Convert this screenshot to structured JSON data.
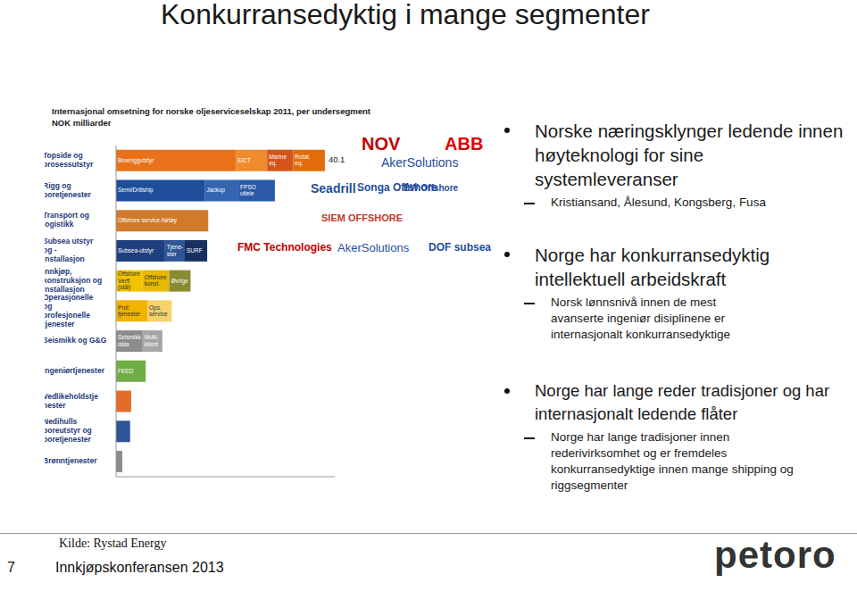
{
  "chart_data": {
    "type": "bar",
    "title": "Internasjonal omsetning for norske oljeserviceselskap 2011, per undersegment",
    "subtitle": "NOK milliarder",
    "orientation": "horizontal",
    "stacked": true,
    "tick_labels": "y",
    "categories": [
      "Topside og prosessutstyr",
      "Rigg og boretjenester",
      "Transport og logistikk",
      "Subsea utstyr og -installasjon",
      "Innkjøp, konstruksjon og installasjon",
      "Operasjonelle og profesjonelle tjenester",
      "Seismikk og G&G",
      "Ingeniørtjenester",
      "Vedlikeholdstjenester",
      "Nedihulls boreutstyr og boretjenester",
      "Brønntjenester"
    ],
    "totals": [
      40.1,
      30.5,
      17.7,
      17.5,
      14.3,
      10.7,
      8.9,
      5.7,
      2.9,
      2.7,
      1.2
    ],
    "xlim": [
      0,
      42
    ],
    "xticks": [],
    "series": [
      {
        "name": "Boreriggutstyr",
        "color": "#e8711a",
        "values": [
          23,
          null,
          null,
          null,
          null,
          null,
          null,
          null,
          null,
          null,
          null
        ]
      },
      {
        "name": "EICT",
        "color": "#f08c2e",
        "values": [
          6,
          null,
          null,
          null,
          null,
          null,
          null,
          null,
          null,
          null,
          null
        ]
      },
      {
        "name": "Marine eq.",
        "color": "#d4541a",
        "values": [
          5,
          null,
          null,
          null,
          null,
          null,
          null,
          null,
          null,
          null,
          null
        ]
      },
      {
        "name": "Rotat. eq.",
        "color": "#e36c0a",
        "values": [
          6.1,
          null,
          null,
          null,
          null,
          null,
          null,
          null,
          null,
          null,
          null
        ]
      },
      {
        "name": "Semi/Drillship",
        "color": "#1f4e9a",
        "values": [
          null,
          17,
          null,
          null,
          null,
          null,
          null,
          null,
          null,
          null,
          null
        ]
      },
      {
        "name": "Jackup",
        "color": "#3465b0",
        "values": [
          null,
          6.5,
          null,
          null,
          null,
          null,
          null,
          null,
          null,
          null,
          null
        ]
      },
      {
        "name": "FPSO utleie",
        "color": "#2a5aa8",
        "values": [
          null,
          7,
          null,
          null,
          null,
          null,
          null,
          null,
          null,
          null,
          null
        ]
      },
      {
        "name": "Offshore service-fartøy",
        "color": "#d07a2c",
        "values": [
          null,
          null,
          17.7,
          null,
          null,
          null,
          null,
          null,
          null,
          null,
          null
        ]
      },
      {
        "name": "Subsea-utstyr",
        "color": "#1f3f7f",
        "values": [
          null,
          null,
          null,
          9.4,
          null,
          null,
          null,
          null,
          null,
          null,
          null
        ]
      },
      {
        "name": "Tjene-ster",
        "color": "#2f5597",
        "values": [
          null,
          null,
          null,
          3.8,
          null,
          null,
          null,
          null,
          null,
          null,
          null
        ]
      },
      {
        "name": "SURF",
        "color": "#163060",
        "values": [
          null,
          null,
          null,
          4.3,
          null,
          null,
          null,
          null,
          null,
          null,
          null
        ]
      },
      {
        "name": "Offshore Verft (stål)",
        "color": "#f2c200",
        "values": [
          null,
          null,
          null,
          null,
          5.1,
          null,
          null,
          null,
          null,
          null,
          null
        ]
      },
      {
        "name": "Offshore konst.",
        "color": "#e8b800",
        "values": [
          null,
          null,
          null,
          null,
          5.1,
          null,
          null,
          null,
          null,
          null,
          null
        ]
      },
      {
        "name": "Øvrige",
        "color": "#8a8a30",
        "values": [
          null,
          null,
          null,
          null,
          4.1,
          null,
          null,
          null,
          null,
          null,
          null
        ]
      },
      {
        "name": "Prof. tjenester",
        "color": "#f0b400",
        "values": [
          null,
          null,
          null,
          null,
          null,
          6,
          null,
          null,
          null,
          null,
          null
        ]
      },
      {
        "name": "Ops. service",
        "color": "#f5d36b",
        "values": [
          null,
          null,
          null,
          null,
          null,
          4.7,
          null,
          null,
          null,
          null,
          null
        ]
      },
      {
        "name": "Seismikk data",
        "color": "#8c8c8c",
        "values": [
          null,
          null,
          null,
          null,
          null,
          null,
          5.1,
          null,
          null,
          null,
          null
        ]
      },
      {
        "name": "Multi-klient",
        "color": "#a6a6a6",
        "values": [
          null,
          null,
          null,
          null,
          null,
          null,
          3.8,
          null,
          null,
          null,
          null
        ]
      },
      {
        "name": "FEED",
        "color": "#70ad47",
        "values": [
          null,
          null,
          null,
          null,
          null,
          null,
          null,
          5.7,
          null,
          null,
          null
        ]
      },
      {
        "color": "#e46c2a",
        "values": [
          null,
          null,
          null,
          null,
          null,
          null,
          null,
          null,
          2.9,
          null,
          null
        ]
      },
      {
        "color": "#2f5597",
        "values": [
          null,
          null,
          null,
          null,
          null,
          null,
          null,
          null,
          null,
          2.7,
          null
        ]
      },
      {
        "color": "#8c8c8c",
        "values": [
          null,
          null,
          null,
          null,
          null,
          null,
          null,
          null,
          null,
          null,
          1.2
        ]
      }
    ]
  },
  "slide": {
    "title": "Konkurransedyktig i mange segmenter",
    "bullets": [
      {
        "text": "Norske næringsklynger ledende innen høyteknologi for sine systemleveranser",
        "sub": "Kristiansand, Ålesund, Kongsberg, Fusa"
      },
      {
        "text": "Norge har konkurransedyktig intellektuell arbeidskraft",
        "sub": "Norsk lønnsnivå innen de mest avanserte ingeniør disiplinene er internasjonalt konkurransedyktige"
      },
      {
        "text": "Norge har lange reder tradisjoner og har internasjonalt ledende flåter",
        "sub": "Norge har lange tradisjoner innen rederivirksomhet og er fremdeles konkurransedyktige innen mange shipping og riggsegmenter"
      }
    ],
    "logos": [
      {
        "text": "NOV",
        "color": "#c00000"
      },
      {
        "text": "ABB",
        "color": "#e00000"
      },
      {
        "text": "AkerSolutions",
        "color": "#1f4e9a"
      },
      {
        "text": "Seadrill",
        "color": "#1f4e9a"
      },
      {
        "text": "Songa Offshore",
        "color": "#1f4e9a"
      },
      {
        "text": "BW Offshore",
        "color": "#1f4e9a"
      },
      {
        "text": "SIEM OFFSHORE",
        "color": "#c0392b"
      },
      {
        "text": "FMC Technologies",
        "color": "#c00000"
      },
      {
        "text": "AkerSolutions",
        "color": "#1f4e9a"
      },
      {
        "text": "DOF subsea",
        "color": "#1f4e9a"
      }
    ],
    "footer": {
      "source": "Kilde: Rystad Energy",
      "page": "7",
      "event": "Innkjøpskonferansen 2013",
      "brand": "petoro"
    }
  }
}
